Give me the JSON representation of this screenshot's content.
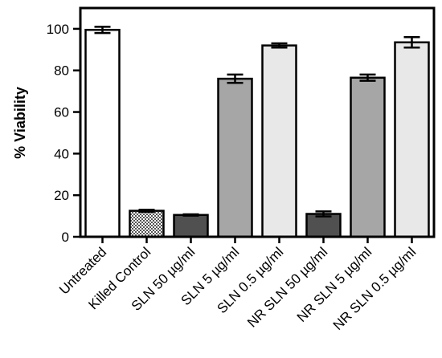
{
  "chart_data": {
    "type": "bar",
    "title": "",
    "xlabel": "",
    "ylabel": "% Viability",
    "ylim": [
      0,
      110
    ],
    "yticks": [
      0,
      20,
      40,
      60,
      80,
      100
    ],
    "ytick_labels": [
      "0",
      "20",
      "40",
      "60",
      "80",
      "100"
    ],
    "categories": [
      "Untreated",
      "Killed Control",
      "SLN 50 µg/ml",
      "SLN 5 µg/ml",
      "SLN 0.5 µg/ml",
      "NR SLN 50 µg/ml",
      "NR SLN 5 µg/ml",
      "NR SLN 0.5 µg/ml"
    ],
    "values": [
      99.5,
      12.5,
      10.5,
      76.0,
      92.0,
      11.0,
      76.5,
      93.5
    ],
    "errors": [
      1.5,
      0.5,
      0.3,
      2.0,
      1.0,
      1.2,
      1.5,
      2.5
    ],
    "fills": [
      "#ffffff",
      "checkered",
      "#505050",
      "#a6a6a6",
      "#e8e8e8",
      "#505050",
      "#a6a6a6",
      "#e8e8e8"
    ],
    "grid": false,
    "legend": "none"
  }
}
